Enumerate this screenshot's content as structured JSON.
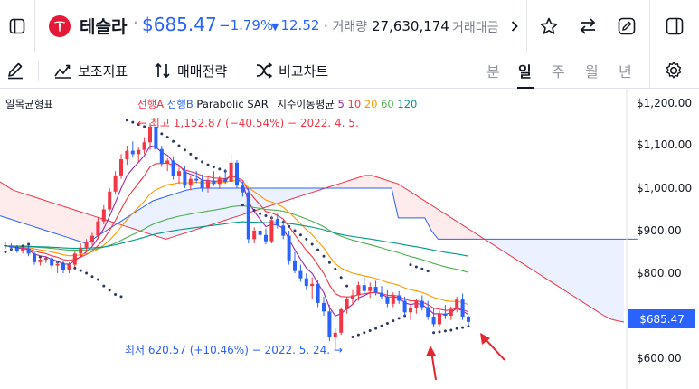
{
  "header": {
    "symbol_name": "테슬라",
    "dot": "·",
    "price": "$685.47",
    "change_pct": "−1.79%",
    "change_arrow": "▼",
    "change_abs": "12.52",
    "volume_label": "거래량",
    "volume": "27,630,174",
    "amount_label": "거래대금",
    "icons": [
      "sidebar-icon",
      "star-icon",
      "swap-icon",
      "edit-icon",
      "panel-icon",
      "chevron-right-icon"
    ]
  },
  "toolbar": {
    "draw_icon": "pencil-icon",
    "indicators_label": "보조지표",
    "strategy_label": "매매전략",
    "compare_label": "비교차트",
    "periods": [
      "분",
      "일",
      "주",
      "월",
      "년"
    ],
    "active_period": "일",
    "settings_icon": "gear-icon"
  },
  "legend": {
    "ichimoku": "일목균형표",
    "span_a": "선행A",
    "span_b": "선행B",
    "psar": "Parabolic SAR",
    "ma_label": "지수이동평균",
    "ma_periods": [
      "5",
      "10",
      "20",
      "60",
      "120"
    ]
  },
  "annotations": {
    "high": "← 최고 1,152.87 (−40.54%) − 2022. 4. 5.",
    "low": "최저 620.57 (+10.46%) − 2022. 5. 24. →"
  },
  "price_axis": {
    "ticks": [
      "$1,200.00",
      "$1,100.00",
      "$1,000.00",
      "$900.00",
      "$800.00",
      "$600.00"
    ],
    "current": "$685.47"
  },
  "colors": {
    "up": "#f23645",
    "down": "#2962ff",
    "ma5": "#9c27b0",
    "ma10": "#f23645",
    "ma20": "#ff9800",
    "ma60": "#4caf50",
    "ma120": "#009688",
    "span_a": "#f23645",
    "span_b": "#2962ff",
    "psar": "#2a3a5e"
  },
  "chart_data": {
    "type": "candlestick",
    "y_unit": "USD",
    "ylim": [
      600,
      1200
    ],
    "high": 1152.87,
    "low": 620.57,
    "last": 685.47,
    "candles": [
      [
        866,
        872,
        858,
        864
      ],
      [
        864,
        870,
        855,
        860
      ],
      [
        860,
        866,
        848,
        852
      ],
      [
        852,
        862,
        846,
        858
      ],
      [
        858,
        864,
        840,
        846
      ],
      [
        846,
        850,
        820,
        826
      ],
      [
        826,
        836,
        818,
        832
      ],
      [
        832,
        840,
        824,
        835
      ],
      [
        835,
        842,
        812,
        818
      ],
      [
        818,
        828,
        800,
        822
      ],
      [
        822,
        830,
        800,
        808
      ],
      [
        808,
        826,
        800,
        820
      ],
      [
        820,
        852,
        815,
        846
      ],
      [
        846,
        870,
        836,
        860
      ],
      [
        860,
        880,
        850,
        872
      ],
      [
        872,
        895,
        866,
        888
      ],
      [
        888,
        930,
        880,
        922
      ],
      [
        922,
        960,
        915,
        950
      ],
      [
        950,
        1000,
        945,
        992
      ],
      [
        992,
        1040,
        985,
        1030
      ],
      [
        1030,
        1080,
        1022,
        1068
      ],
      [
        1068,
        1100,
        1055,
        1088
      ],
      [
        1088,
        1110,
        1072,
        1080
      ],
      [
        1080,
        1098,
        1060,
        1090
      ],
      [
        1090,
        1120,
        1080,
        1108
      ],
      [
        1108,
        1152.87,
        1090,
        1145
      ],
      [
        1145,
        1150,
        1085,
        1092
      ],
      [
        1092,
        1100,
        1050,
        1058
      ],
      [
        1058,
        1070,
        1040,
        1065
      ],
      [
        1065,
        1075,
        1020,
        1028
      ],
      [
        1028,
        1048,
        1010,
        1040
      ],
      [
        1040,
        1052,
        1000,
        1006
      ],
      [
        1006,
        1030,
        995,
        1022
      ],
      [
        1022,
        1040,
        1012,
        1018
      ],
      [
        1018,
        1032,
        992,
        1000
      ],
      [
        1000,
        1025,
        990,
        1018
      ],
      [
        1018,
        1040,
        1005,
        1010
      ],
      [
        1010,
        1030,
        998,
        1022
      ],
      [
        1022,
        1045,
        1010,
        1015
      ],
      [
        1015,
        1080,
        1008,
        1060
      ],
      [
        1060,
        1066,
        1000,
        1006
      ],
      [
        1006,
        1015,
        980,
        990
      ],
      [
        990,
        1000,
        870,
        880
      ],
      [
        880,
        908,
        870,
        900
      ],
      [
        900,
        920,
        880,
        890
      ],
      [
        890,
        905,
        868,
        875
      ],
      [
        875,
        935,
        870,
        925
      ],
      [
        925,
        940,
        905,
        912
      ],
      [
        912,
        925,
        880,
        888
      ],
      [
        888,
        900,
        820,
        830
      ],
      [
        830,
        850,
        800,
        805
      ],
      [
        805,
        820,
        780,
        788
      ],
      [
        788,
        800,
        760,
        770
      ],
      [
        770,
        790,
        740,
        775
      ],
      [
        775,
        785,
        720,
        730
      ],
      [
        730,
        745,
        700,
        710
      ],
      [
        710,
        725,
        640,
        650
      ],
      [
        650,
        670,
        620.57,
        660
      ],
      [
        660,
        720,
        655,
        715
      ],
      [
        715,
        745,
        705,
        740
      ],
      [
        740,
        760,
        725,
        748
      ],
      [
        748,
        780,
        735,
        772
      ],
      [
        772,
        790,
        750,
        758
      ],
      [
        758,
        778,
        742,
        768
      ],
      [
        768,
        782,
        748,
        754
      ],
      [
        754,
        770,
        738,
        745
      ],
      [
        745,
        760,
        720,
        728
      ],
      [
        728,
        755,
        720,
        748
      ],
      [
        748,
        758,
        728,
        735
      ],
      [
        735,
        745,
        700,
        708
      ],
      [
        708,
        725,
        690,
        718
      ],
      [
        718,
        740,
        705,
        735
      ],
      [
        735,
        748,
        712,
        720
      ],
      [
        720,
        735,
        690,
        698
      ],
      [
        698,
        718,
        672,
        680
      ],
      [
        680,
        712,
        675,
        705
      ],
      [
        705,
        725,
        692,
        700
      ],
      [
        700,
        722,
        690,
        716
      ],
      [
        716,
        745,
        708,
        738
      ],
      [
        738,
        752,
        690,
        698
      ],
      [
        698,
        700,
        678,
        685.47
      ]
    ],
    "sar": [
      850,
      856,
      860,
      864,
      868,
      842,
      838,
      834,
      830,
      826,
      822,
      818,
      812,
      806,
      800,
      792,
      785,
      770,
      760,
      750,
      745,
      1160,
      1155,
      1150,
      1145,
      1140,
      1135,
      1128,
      1120,
      1110,
      1100,
      1090,
      1080,
      1070,
      1062,
      1055,
      1050,
      1045,
      1040,
      1035,
      1030,
      960,
      955,
      948,
      940,
      935,
      930,
      925,
      920,
      910,
      900,
      890,
      880,
      868,
      855,
      840,
      825,
      810,
      790,
      770,
      650,
      655,
      660,
      665,
      670,
      676,
      682,
      688,
      694,
      700,
      820,
      815,
      810,
      805,
      660,
      662,
      664,
      666,
      670,
      672,
      675
    ],
    "span_a": [
      1015,
      1005,
      995,
      990,
      985,
      980,
      975,
      970,
      965,
      960,
      955,
      950,
      945,
      940,
      935,
      930,
      925,
      920,
      915,
      910,
      905,
      900,
      895,
      890,
      885,
      880,
      885,
      890,
      895,
      900,
      905,
      910,
      915,
      920,
      925,
      930,
      935,
      940,
      945,
      950,
      955,
      960,
      965,
      970,
      975,
      980,
      985,
      990,
      995,
      1000,
      1005,
      1010,
      1015,
      1020,
      1025,
      1030,
      1030,
      1025,
      1020,
      1015,
      1010,
      1000,
      990,
      980,
      970,
      960,
      950,
      940,
      930,
      920,
      910,
      900,
      890,
      880,
      870,
      860,
      850,
      840,
      830,
      820,
      810,
      800,
      790,
      780,
      770,
      760,
      750,
      740,
      730,
      720,
      710,
      700,
      692,
      688,
      685
    ],
    "span_b": [
      935,
      930,
      925,
      920,
      915,
      910,
      905,
      900,
      895,
      890,
      885,
      880,
      875,
      870,
      880,
      890,
      900,
      910,
      920,
      930,
      940,
      950,
      960,
      970,
      975,
      980,
      985,
      990,
      995,
      998,
      1000,
      1000,
      1000,
      1000,
      1000,
      1000,
      1000,
      1000,
      1000,
      1000,
      1000,
      1000,
      1000,
      1000,
      1000,
      1000,
      1000,
      1000,
      1000,
      1000,
      1000,
      1000,
      1000,
      1000,
      1000,
      1000,
      1000,
      1000,
      1000,
      1000,
      930,
      930,
      930,
      930,
      930,
      900,
      880,
      880,
      880,
      880,
      880,
      880,
      880,
      880,
      880,
      880,
      880,
      880,
      880,
      880,
      880,
      880,
      880,
      880,
      880,
      880,
      880,
      880,
      880,
      880,
      880,
      880,
      880,
      880,
      880,
      880,
      880
    ]
  }
}
